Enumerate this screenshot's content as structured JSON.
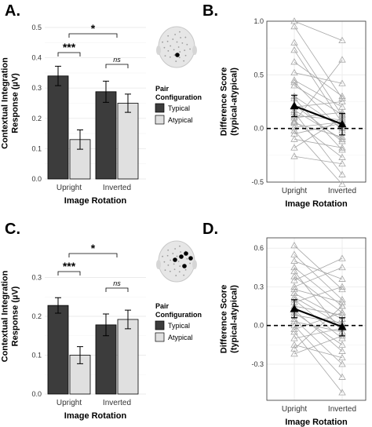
{
  "figure": {
    "colors": {
      "typical": "#3c3c3c",
      "atypical": "#e0e0e0",
      "grid": "#ebebeb",
      "individual_lines": "#a6a6a6",
      "mean": "#000000"
    }
  },
  "chart_data": [
    {
      "panel": "A.",
      "type": "bar",
      "ylabel": "Contextual Integration\nResponse (µV)",
      "xlabel": "Image Rotation",
      "categories": [
        "Upright",
        "Inverted"
      ],
      "ylim": [
        0,
        0.5
      ],
      "yticks": [
        0.0,
        0.1,
        0.2,
        0.3,
        0.4,
        0.5
      ],
      "ytick_labels": [
        "0.0",
        "0.1",
        "0.2",
        "0.3",
        "0.4",
        "0.5"
      ],
      "series": [
        {
          "name": "Typical",
          "values": [
            0.34,
            0.288
          ],
          "errors": [
            0.032,
            0.035
          ]
        },
        {
          "name": "Atypical",
          "values": [
            0.13,
            0.25
          ],
          "errors": [
            0.032,
            0.03
          ]
        }
      ],
      "legend": {
        "title": "Pair\nConfiguration",
        "entries": [
          "Typical",
          "Atypical"
        ],
        "position": "right"
      },
      "annotations": [
        {
          "type": "bracket",
          "label": "***",
          "between": "Upright Typical vs Upright Atypical"
        },
        {
          "type": "bracket",
          "label": "ns",
          "between": "Inverted Typical vs Inverted Atypical"
        },
        {
          "type": "bracket",
          "label": "*",
          "between": "Upright vs Inverted"
        }
      ],
      "inset": "scalp-map-one-electrode",
      "grid": true
    },
    {
      "panel": "B.",
      "type": "line",
      "ylabel": "Difference Score\n(typical-atypical)",
      "xlabel": "Image Rotation",
      "categories": [
        "Upright",
        "Inverted"
      ],
      "ylim": [
        -0.5,
        1.0
      ],
      "yticks": [
        -0.5,
        0.0,
        0.5,
        1.0
      ],
      "ytick_labels": [
        "-0.5",
        "0.0",
        "0.5",
        "1.0"
      ],
      "zero_line": 0,
      "mean": {
        "values": [
          0.21,
          0.04
        ],
        "errors": [
          0.1,
          0.1
        ]
      },
      "subjects": [
        [
          1.0,
          0.82
        ],
        [
          0.95,
          0.28
        ],
        [
          0.8,
          0.12
        ],
        [
          0.73,
          0.05
        ],
        [
          0.62,
          0.3
        ],
        [
          0.52,
          0.42
        ],
        [
          0.45,
          0.2
        ],
        [
          0.43,
          -0.02
        ],
        [
          0.4,
          0.13
        ],
        [
          0.3,
          0.0
        ],
        [
          0.28,
          -0.2
        ],
        [
          0.22,
          -0.12
        ],
        [
          0.2,
          0.25
        ],
        [
          0.17,
          -0.1
        ],
        [
          0.15,
          -0.43
        ],
        [
          0.12,
          0.08
        ],
        [
          0.1,
          0.15
        ],
        [
          0.07,
          -0.27
        ],
        [
          0.06,
          0.64
        ],
        [
          0.05,
          -0.08
        ],
        [
          0.01,
          0.06
        ],
        [
          -0.02,
          -0.52
        ],
        [
          -0.05,
          0.05
        ],
        [
          -0.1,
          -0.18
        ],
        [
          -0.18,
          0.1
        ],
        [
          -0.26,
          -0.33
        ]
      ],
      "grid": true
    },
    {
      "panel": "C.",
      "type": "bar",
      "ylabel": "Contextual Integration\nResponse (µV)",
      "xlabel": "Image Rotation",
      "categories": [
        "Upright",
        "Inverted"
      ],
      "ylim": [
        0,
        0.4
      ],
      "yticks": [
        0.0,
        0.1,
        0.2,
        0.3
      ],
      "ytick_labels": [
        "0.0",
        "0.1",
        "0.2",
        "0.3"
      ],
      "series": [
        {
          "name": "Typical",
          "values": [
            0.228,
            0.178
          ],
          "errors": [
            0.02,
            0.028
          ]
        },
        {
          "name": "Atypical",
          "values": [
            0.1,
            0.192
          ],
          "errors": [
            0.022,
            0.024
          ]
        }
      ],
      "legend": {
        "title": "Pair\nConfiguration",
        "entries": [
          "Typical",
          "Atypical"
        ],
        "position": "right"
      },
      "annotations": [
        {
          "type": "bracket",
          "label": "***",
          "between": "Upright Typical vs Upright Atypical"
        },
        {
          "type": "bracket",
          "label": "ns",
          "between": "Inverted Typical vs Inverted Atypical"
        },
        {
          "type": "bracket",
          "label": "*",
          "between": "Upright vs Inverted"
        }
      ],
      "inset": "scalp-map-electrode-cluster",
      "grid": true
    },
    {
      "panel": "D.",
      "type": "line",
      "ylabel": "Difference Score\n(typical-atypical)",
      "xlabel": "Image Rotation",
      "categories": [
        "Upright",
        "Inverted"
      ],
      "ylim": [
        -0.58,
        0.68
      ],
      "yticks": [
        -0.3,
        0.0,
        0.3,
        0.6
      ],
      "ytick_labels": [
        "-0.3",
        "0.0",
        "0.3",
        "0.6"
      ],
      "zero_line": 0,
      "mean": {
        "values": [
          0.13,
          -0.01
        ],
        "errors": [
          0.07,
          0.07
        ]
      },
      "subjects": [
        [
          0.62,
          0.28
        ],
        [
          0.55,
          0.2
        ],
        [
          0.5,
          0.36
        ],
        [
          0.45,
          0.15
        ],
        [
          0.42,
          -0.05
        ],
        [
          0.38,
          0.1
        ],
        [
          0.35,
          0.52
        ],
        [
          0.3,
          0.45
        ],
        [
          0.28,
          0.18
        ],
        [
          0.25,
          0.05
        ],
        [
          0.22,
          0.0
        ],
        [
          0.2,
          -0.1
        ],
        [
          0.18,
          0.3
        ],
        [
          0.15,
          0.08
        ],
        [
          0.12,
          -0.2
        ],
        [
          0.1,
          -0.15
        ],
        [
          0.08,
          0.02
        ],
        [
          0.05,
          -0.3
        ],
        [
          0.03,
          -0.05
        ],
        [
          0.0,
          -0.4
        ],
        [
          -0.03,
          0.1
        ],
        [
          -0.05,
          -0.52
        ],
        [
          -0.1,
          -0.02
        ],
        [
          -0.15,
          -0.25
        ],
        [
          -0.18,
          0.15
        ],
        [
          -0.22,
          -0.08
        ]
      ],
      "grid": true
    }
  ]
}
